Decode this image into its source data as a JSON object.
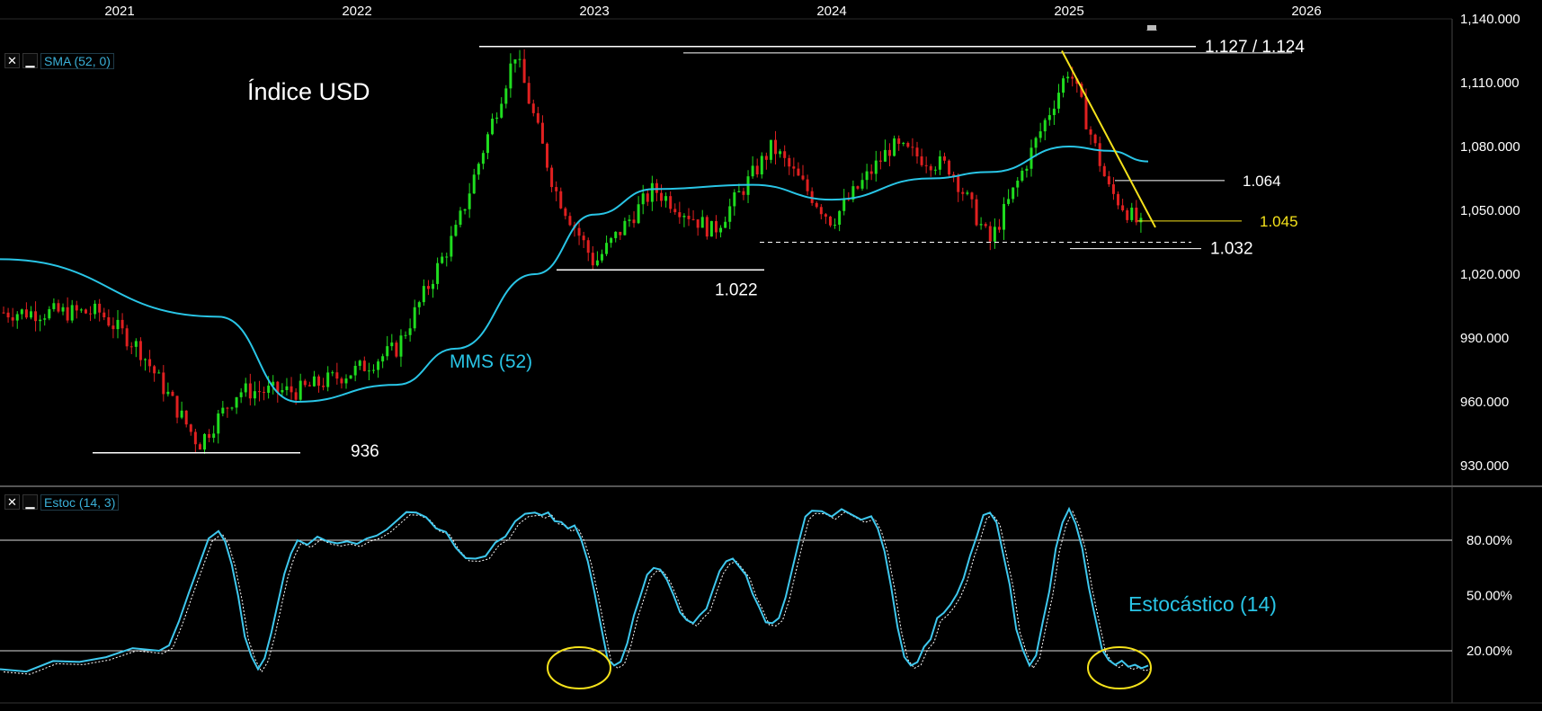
{
  "x_axis": {
    "labels": [
      "2021",
      "2022",
      "2023",
      "2024",
      "2025",
      "2026"
    ]
  },
  "price_panel": {
    "y_ticks": [
      "1,140.000",
      "1,110.000",
      "1,080.000",
      "1,050.000",
      "1,020.000",
      "990.000",
      "960.000",
      "930.000"
    ],
    "indicator_label": "SMA (52, 0)",
    "title": "Índice USD",
    "sma_label": "MMS (52)",
    "levels": {
      "top": "1.127 / 1.124",
      "l1064": "1.064",
      "l1045": "1.045",
      "l1032": "1.032",
      "l1022": "1.022",
      "l936": "936"
    }
  },
  "stoch_panel": {
    "y_ticks": [
      "80.00%",
      "50.00%",
      "20.00%"
    ],
    "indicator_label": "Estoc (14, 3)",
    "title": "Estocástico (14)"
  },
  "controls": {
    "close": "✕",
    "minimize": "▁"
  },
  "colors": {
    "background": "#000000",
    "up_candle": "#1fdc1f",
    "down_candle": "#e02020",
    "sma": "#29c5e6",
    "stoch_k": "#3ec8ee",
    "stoch_d": "#ffffff",
    "trendline": "#f5e21b",
    "levels": "#ffffff"
  },
  "chart_data": [
    {
      "type": "candlestick",
      "title": "Índice USD",
      "ylim": [
        930,
        1140
      ],
      "series": [
        {
          "name": "MMS (52)",
          "x": [
            "2021-01",
            "2021-06",
            "2021-10",
            "2022-03",
            "2022-06",
            "2022-10",
            "2023-01",
            "2023-04",
            "2023-09",
            "2024-01",
            "2024-06",
            "2024-09",
            "2025-01",
            "2025-03",
            "2025-05"
          ],
          "values": [
            1027,
            1000,
            960,
            968,
            985,
            1020,
            1048,
            1060,
            1062,
            1055,
            1065,
            1068,
            1080,
            1078,
            1073
          ]
        }
      ],
      "close_path": {
        "x": [
          "2020-12",
          "2021-02",
          "2021-05",
          "2021-07",
          "2021-10",
          "2022-01",
          "2022-03",
          "2022-06",
          "2022-09",
          "2022-11",
          "2023-01",
          "2023-04",
          "2023-07",
          "2023-10",
          "2024-01",
          "2024-04",
          "2024-07",
          "2024-09",
          "2024-10",
          "2025-01",
          "2025-03",
          "2025-05"
        ],
        "values": [
          1002,
          985,
          940,
          965,
          965,
          975,
          985,
          1040,
          1124,
          1060,
          1025,
          1060,
          1040,
          1080,
          1045,
          1080,
          1070,
          1035,
          1055,
          1117,
          1060,
          1038
        ]
      },
      "annotations": [
        "1.127 / 1.124",
        "1.064",
        "1.045",
        "1.032",
        "1.022",
        "936"
      ]
    },
    {
      "type": "line",
      "title": "Estocástico (14)",
      "ylim": [
        0,
        100
      ],
      "reference_lines": [
        80,
        20
      ],
      "series": [
        {
          "name": "Estoc (14, 3)",
          "x": [
            "2020-12",
            "2021-03",
            "2021-06",
            "2021-08",
            "2021-10",
            "2022-01",
            "2022-04",
            "2022-07",
            "2022-10",
            "2022-12",
            "2023-02",
            "2023-04",
            "2023-06",
            "2023-08",
            "2023-10",
            "2023-12",
            "2024-03",
            "2024-05",
            "2024-07",
            "2024-09",
            "2024-11",
            "2025-01",
            "2025-03",
            "2025-05"
          ],
          "values": [
            10,
            20,
            85,
            10,
            80,
            78,
            95,
            70,
            95,
            88,
            12,
            65,
            35,
            70,
            35,
            96,
            93,
            12,
            45,
            95,
            12,
            97,
            15,
            12
          ]
        }
      ]
    }
  ]
}
